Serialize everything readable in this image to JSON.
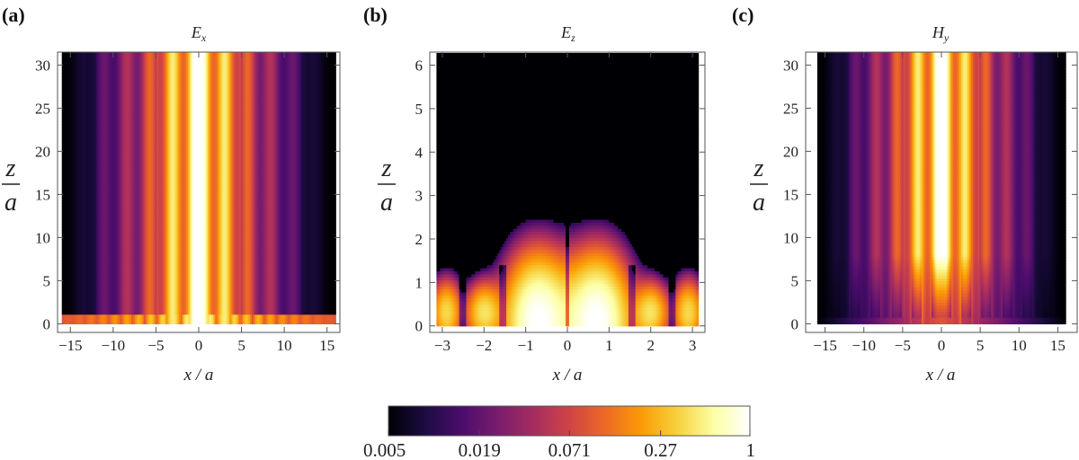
{
  "chart_data": [
    {
      "type": "heatmap",
      "panel": "(a)",
      "title": "E",
      "title_sub": "x",
      "xlabel": "x / a",
      "ylabel_num": "z",
      "ylabel_den": "a",
      "xlim": [
        -16.5,
        16.5
      ],
      "ylim": [
        -1,
        31.5
      ],
      "xticks": [
        -15,
        -10,
        -5,
        0,
        5,
        10,
        15
      ],
      "yticks": [
        0,
        5,
        10,
        15,
        20,
        25,
        30
      ],
      "xtick_labels": [
        "−15",
        "−10",
        "−5",
        "0",
        "5",
        "10",
        "15"
      ],
      "ytick_labels": [
        "0",
        "5",
        "10",
        "15",
        "20",
        "25",
        "30"
      ],
      "field_extent": {
        "x": [
          -16,
          16
        ],
        "z": [
          0,
          31.5
        ]
      },
      "pattern": "vertical stripes, brightest at x=0, decaying with |x|"
    },
    {
      "type": "heatmap",
      "panel": "(b)",
      "title": "E",
      "title_sub": "z",
      "xlabel": "x / a",
      "ylabel_num": "z",
      "ylabel_den": "a",
      "xlim": [
        -3.3,
        3.3
      ],
      "ylim": [
        -0.15,
        6.3
      ],
      "xticks": [
        -3,
        -2,
        -1,
        0,
        1,
        2,
        3
      ],
      "yticks": [
        0,
        1,
        2,
        3,
        4,
        5,
        6
      ],
      "xtick_labels": [
        "−3",
        "−2",
        "−1",
        "0",
        "1",
        "2",
        "3"
      ],
      "ytick_labels": [
        "0",
        "1",
        "2",
        "3",
        "4",
        "5",
        "6"
      ],
      "field_extent": {
        "x": [
          -3.14,
          3.14
        ],
        "z": [
          0,
          6.28
        ]
      },
      "pattern": "two bright lobes near z=0 at x=±0.7, weaker lobes near x=±2"
    },
    {
      "type": "heatmap",
      "panel": "(c)",
      "title": "H",
      "title_sub": "y",
      "xlabel": "x / a",
      "ylabel_num": "z",
      "ylabel_den": "a",
      "xlim": [
        -17.5,
        17.5
      ],
      "ylim": [
        -1,
        31.5
      ],
      "xticks": [
        -15,
        -10,
        -5,
        0,
        5,
        10,
        15
      ],
      "yticks": [
        0,
        5,
        10,
        15,
        20,
        25,
        30
      ],
      "xtick_labels": [
        "−15",
        "−10",
        "−5",
        "0",
        "5",
        "10",
        "15"
      ],
      "ytick_labels": [
        "0",
        "5",
        "10",
        "15",
        "20",
        "25",
        "30"
      ],
      "field_extent": {
        "x": [
          -16,
          16
        ],
        "z": [
          0,
          31.5
        ]
      },
      "pattern": "vertical stripes, brightest at x=0, spiky lobes near z=0"
    }
  ],
  "colorbar": {
    "scale": "log",
    "range": [
      0.005,
      1
    ],
    "tick_values": [
      0.005,
      0.019,
      0.071,
      0.27,
      1
    ],
    "tick_labels": [
      "0.005",
      "0.019",
      "0.071",
      "0.27",
      "1"
    ],
    "colors": [
      "#000004",
      "#1b0c41",
      "#4a0c6b",
      "#781c6d",
      "#a52c60",
      "#cf4446",
      "#ed6925",
      "#fb9b06",
      "#f7d13d",
      "#fcffa4",
      "#ffffff"
    ]
  }
}
